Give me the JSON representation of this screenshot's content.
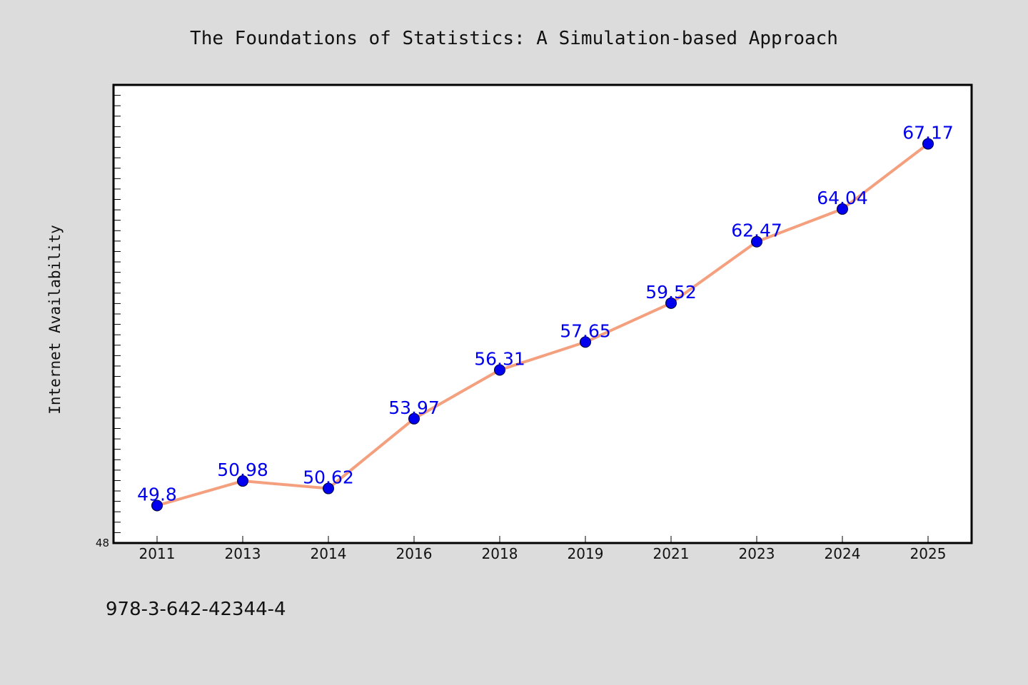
{
  "chart_data": {
    "type": "line",
    "title": "The Foundations of Statistics: A Simulation-based Approach",
    "ylabel": "Internet Availability",
    "xlabel": "",
    "categories": [
      "2011",
      "2013",
      "2014",
      "2016",
      "2018",
      "2019",
      "2021",
      "2023",
      "2024",
      "2025"
    ],
    "series": [
      {
        "values": [
          49.8,
          50.98,
          50.62,
          53.97,
          56.31,
          57.65,
          59.52,
          62.47,
          64.04,
          67.17
        ],
        "labels": [
          "49.8",
          "50.98",
          "50.62",
          "53.97",
          "56.31",
          "57.65",
          "59.52",
          "62.47",
          "64.04",
          "67.17"
        ]
      }
    ],
    "ylim": [
      48,
      70
    ],
    "y_tick_label": "48",
    "grid": false,
    "legend": "none",
    "colors": {
      "line": "#f4a07e",
      "marker": "#0000ee",
      "label": "#0000ee",
      "plot_background": "#ffffff",
      "page_background": "#dcdcdc"
    }
  },
  "footnote": "978-3-642-42344-4"
}
